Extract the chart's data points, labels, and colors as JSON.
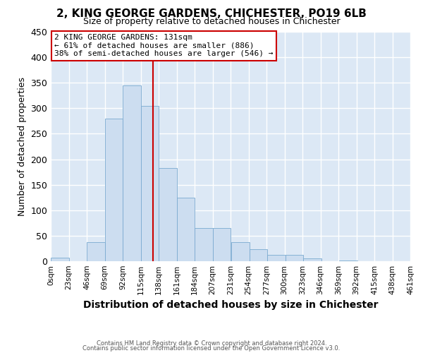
{
  "title": "2, KING GEORGE GARDENS, CHICHESTER, PO19 6LB",
  "subtitle": "Size of property relative to detached houses in Chichester",
  "xlabel": "Distribution of detached houses by size in Chichester",
  "ylabel": "Number of detached properties",
  "bar_values": [
    7,
    0,
    37,
    280,
    345,
    305,
    183,
    124,
    65,
    65,
    38,
    23,
    13,
    13,
    5,
    0,
    2,
    0,
    0
  ],
  "bin_edges": [
    0,
    23,
    46,
    69,
    92,
    115,
    138,
    161,
    184,
    207,
    231,
    254,
    277,
    300,
    323,
    346,
    369,
    392,
    415,
    438
  ],
  "tick_labels": [
    "0sqm",
    "23sqm",
    "46sqm",
    "69sqm",
    "92sqm",
    "115sqm",
    "138sqm",
    "161sqm",
    "184sqm",
    "207sqm",
    "231sqm",
    "254sqm",
    "277sqm",
    "300sqm",
    "323sqm",
    "346sqm",
    "369sqm",
    "392sqm",
    "415sqm",
    "438sqm",
    "461sqm"
  ],
  "bar_facecolor": "#ccddf0",
  "bar_edgecolor": "#7aaad0",
  "vline_x": 131,
  "vline_color": "#cc0000",
  "ylim": [
    0,
    450
  ],
  "yticks": [
    0,
    50,
    100,
    150,
    200,
    250,
    300,
    350,
    400,
    450
  ],
  "annotation_title": "2 KING GEORGE GARDENS: 131sqm",
  "annotation_line1": "← 61% of detached houses are smaller (886)",
  "annotation_line2": "38% of semi-detached houses are larger (546) →",
  "annotation_box_color": "#cc0000",
  "footer_line1": "Contains HM Land Registry data © Crown copyright and database right 2024.",
  "footer_line2": "Contains public sector information licensed under the Open Government Licence v3.0.",
  "background_color": "#dce8f5",
  "grid_color": "#ffffff",
  "fig_bg": "#ffffff"
}
